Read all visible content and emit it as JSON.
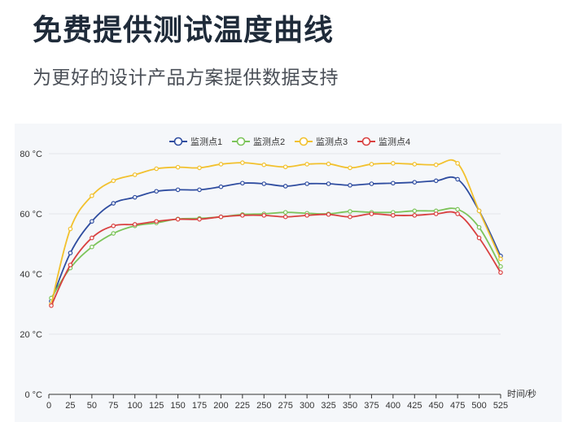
{
  "header": {
    "title": "免费提供测试温度曲线",
    "subtitle": "为更好的设计产品方案提供数据支持"
  },
  "chart_data": {
    "type": "line",
    "xlabel": "时间/秒",
    "ylabel": "",
    "xlim": [
      0,
      525
    ],
    "ylim": [
      0,
      80
    ],
    "x_ticks": [
      0,
      25,
      50,
      75,
      100,
      125,
      150,
      175,
      200,
      225,
      250,
      275,
      300,
      325,
      350,
      375,
      400,
      425,
      450,
      475,
      500,
      525
    ],
    "y_ticks": [
      0,
      20,
      40,
      60,
      80
    ],
    "y_tick_suffix": " °C",
    "grid": "horizontal",
    "legend_position": "top-center",
    "x": [
      0,
      25,
      50,
      75,
      100,
      125,
      150,
      175,
      200,
      225,
      250,
      275,
      300,
      325,
      350,
      375,
      400,
      425,
      450,
      475,
      500,
      525
    ],
    "series": [
      {
        "name": "监测点1",
        "color": "#2f4da0",
        "values": [
          31,
          47,
          57.5,
          63.5,
          65.5,
          67.5,
          68,
          68,
          69,
          70.2,
          70,
          69.2,
          70,
          70,
          69.5,
          70,
          70.2,
          70.5,
          71,
          71.5,
          61,
          46
        ]
      },
      {
        "name": "监测点2",
        "color": "#7cc45a",
        "values": [
          32,
          42,
          49,
          53.5,
          56,
          57,
          58.3,
          58.5,
          59,
          59.8,
          60,
          60.5,
          60.2,
          60,
          60.8,
          60.5,
          60.5,
          61,
          61,
          61.5,
          55.5,
          42.5
        ]
      },
      {
        "name": "监测点3",
        "color": "#f2c12e",
        "values": [
          30,
          55,
          66,
          71,
          73,
          75,
          75.5,
          75.3,
          76.5,
          77,
          76.3,
          75.6,
          76.5,
          76.6,
          75.3,
          76.5,
          76.8,
          76.5,
          76.3,
          76.8,
          61,
          45
        ]
      },
      {
        "name": "监测点4",
        "color": "#d94040",
        "values": [
          29.5,
          43,
          52,
          56,
          56.5,
          57.5,
          58.2,
          58.2,
          59,
          59.5,
          59.5,
          59,
          59.5,
          59.8,
          59,
          60,
          59.5,
          59.5,
          60,
          60,
          52,
          40.5
        ]
      }
    ]
  }
}
